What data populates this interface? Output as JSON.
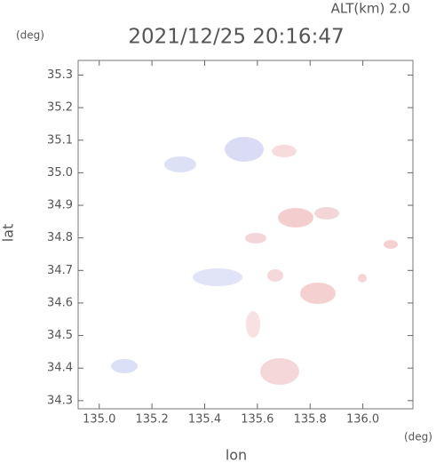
{
  "chart_data": {
    "type": "map",
    "title": "2021/12/25 20:16:47",
    "altitude_label": "ALT(km) 2.0",
    "y_unit": "(deg)",
    "x_unit": "(deg)",
    "xlabel": "lon",
    "ylabel": "lat",
    "xlim": [
      134.92,
      136.19
    ],
    "ylim": [
      34.275,
      35.345
    ],
    "xticks": [
      {
        "value": 135.0,
        "label": "135.0"
      },
      135.2,
      135.4,
      135.6,
      135.8,
      {
        "value": 136.0,
        "label": "136.0"
      }
    ],
    "yticks": [
      34.3,
      34.4,
      34.5,
      34.6,
      34.7,
      34.8,
      34.9,
      {
        "value": 35.0,
        "label": "35.0"
      },
      35.1,
      35.2,
      35.3
    ]
  }
}
